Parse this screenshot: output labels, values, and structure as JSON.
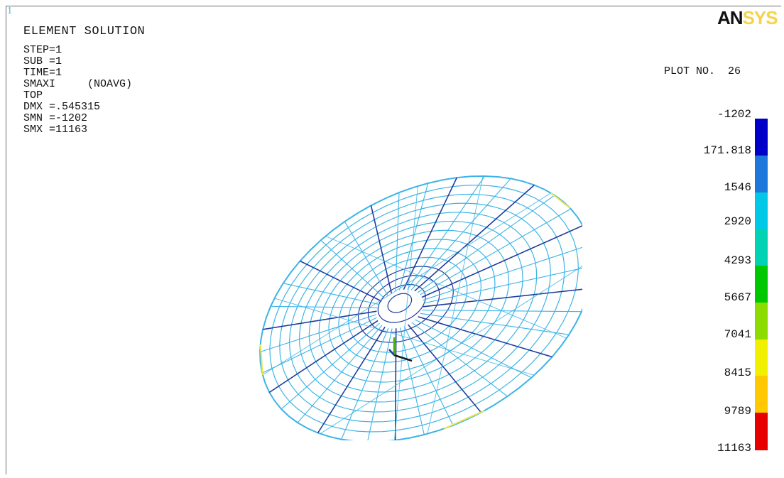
{
  "window_number": "1",
  "logo": {
    "part1": "AN",
    "part2": "SYS"
  },
  "title": "ELEMENT SOLUTION",
  "params": [
    "STEP=1",
    "SUB =1",
    "TIME=1",
    "SMAXI     (NOAVG)",
    "TOP",
    "DMX =.545315",
    "SMN =-1202",
    "SMX =11163"
  ],
  "plot_number": "PLOT NO.  26",
  "legend": {
    "labels": [
      "-1202",
      "171.818",
      "1546",
      "2920",
      "4293",
      "5667",
      "7041",
      "8415",
      "9789",
      "11163"
    ],
    "colors": [
      "#0000c8",
      "#1e78dc",
      "#00c8e6",
      "#00d2b4",
      "#00c800",
      "#8cdc00",
      "#f0f000",
      "#ffc800",
      "#ff7800",
      "#e60000"
    ]
  },
  "mesh_colors": {
    "primary": "#3cb4e6",
    "dark": "#1e3c9c",
    "accent": "#e6e650"
  }
}
